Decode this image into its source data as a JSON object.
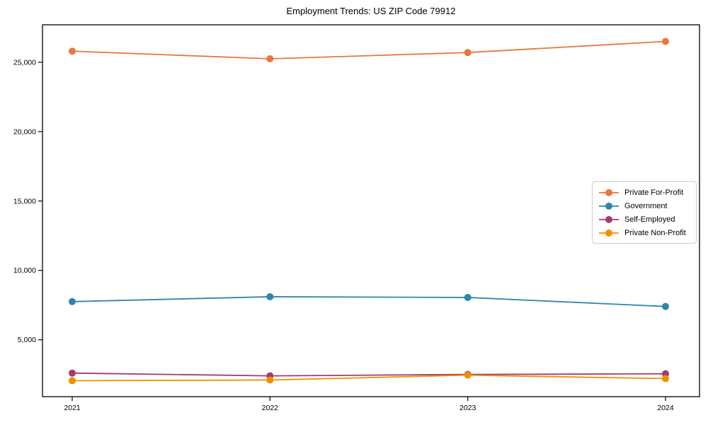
{
  "chart_data": {
    "type": "line",
    "title": "Employment Trends: US ZIP Code 79912",
    "categories": [
      "2021",
      "2022",
      "2023",
      "2024"
    ],
    "series": [
      {
        "name": "Private For-Profit",
        "color": "#E8773C",
        "values": [
          25800,
          25250,
          25700,
          26500
        ]
      },
      {
        "name": "Government",
        "color": "#2E86AB",
        "values": [
          7750,
          8100,
          8050,
          7400
        ]
      },
      {
        "name": "Self-Employed",
        "color": "#A23B72",
        "values": [
          2600,
          2400,
          2500,
          2550
        ]
      },
      {
        "name": "Private Non-Profit",
        "color": "#F18F01",
        "values": [
          2050,
          2100,
          2450,
          2200
        ]
      }
    ],
    "xlabel": "",
    "ylabel": "",
    "ylim": [
      900,
      27700
    ],
    "y_ticks": [
      5000,
      10000,
      15000,
      20000,
      25000
    ],
    "grid": false,
    "legend_position": "center right",
    "axis_color": "#000000",
    "tick_label_color": "#000000",
    "background_color": "#ffffff",
    "marker": "circle",
    "line_width": 1.8,
    "marker_radius": 5
  }
}
